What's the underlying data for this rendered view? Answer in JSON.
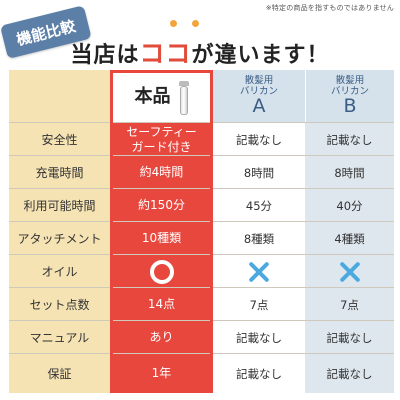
{
  "note": "※特定の商品を指すものではありません",
  "badge": "機能比較",
  "headline": {
    "before": "当店は",
    "emphasis": "ココ",
    "after": "が違います！"
  },
  "header": {
    "product": "本品",
    "a_sub1": "散髪用",
    "a_sub2": "バリカン",
    "a_letter": "A",
    "b_sub1": "散髪用",
    "b_sub2": "バリカン",
    "b_letter": "B"
  },
  "rows": [
    {
      "label": "安全性",
      "product": "セーフティー\nガード付き",
      "a": "記載なし",
      "b": "記載なし"
    },
    {
      "label": "充電時間",
      "product": "約4時間",
      "a": "8時間",
      "b": "8時間"
    },
    {
      "label": "利用可能時間",
      "product": "約150分",
      "a": "45分",
      "b": "40分"
    },
    {
      "label": "アタッチメント",
      "product": "10種類",
      "a": "8種類",
      "b": "4種類"
    },
    {
      "label": "オイル",
      "product_icon": "circle-mark-icon",
      "a_icon": "cross-mark-icon",
      "b_icon": "cross-mark-icon"
    },
    {
      "label": "セット点数",
      "product": "14点",
      "a": "7点",
      "b": "7点"
    },
    {
      "label": "マニュアル",
      "product": "あり",
      "a": "記載なし",
      "b": "記載なし"
    },
    {
      "label": "保証",
      "product": "1年",
      "a": "記載なし",
      "b": "記載なし"
    }
  ],
  "colors": {
    "accent_red": "#e8473e",
    "label_bg": "#f5e3b4",
    "compare_bg": "#dfe7ee",
    "cross_blue": "#4ca9e0",
    "badge_blue": "#5c7fa8"
  }
}
